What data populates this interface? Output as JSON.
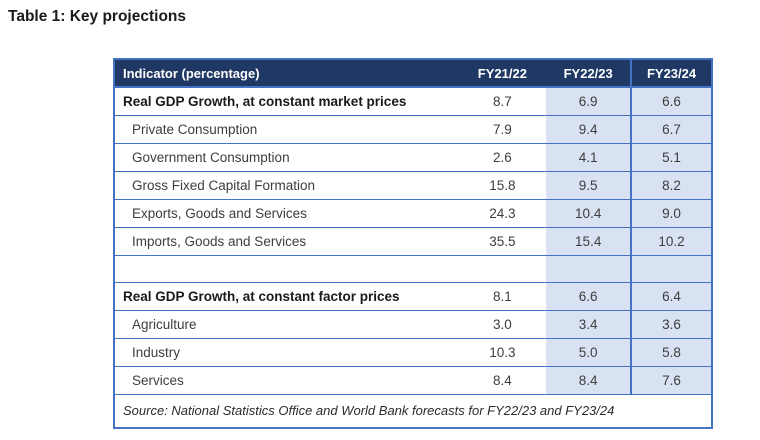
{
  "title": "Table 1: Key projections",
  "table": {
    "columns": [
      "Indicator (percentage)",
      "FY21/22",
      "FY22/23",
      "FY23/24"
    ],
    "rows": [
      {
        "label": "Real GDP Growth, at constant market prices",
        "bold": true,
        "values": [
          "8.7",
          "6.9",
          "6.6"
        ]
      },
      {
        "label": "Private Consumption",
        "bold": false,
        "values": [
          "7.9",
          "9.4",
          "6.7"
        ]
      },
      {
        "label": "Government Consumption",
        "bold": false,
        "values": [
          "2.6",
          "4.1",
          "5.1"
        ]
      },
      {
        "label": "Gross Fixed Capital Formation",
        "bold": false,
        "values": [
          "15.8",
          "9.5",
          "8.2"
        ]
      },
      {
        "label": "Exports, Goods and Services",
        "bold": false,
        "values": [
          "24.3",
          "10.4",
          "9.0"
        ]
      },
      {
        "label": "Imports, Goods and Services",
        "bold": false,
        "values": [
          "35.5",
          "15.4",
          "10.2"
        ]
      },
      {
        "label": "",
        "bold": false,
        "values": [
          "",
          "",
          ""
        ]
      },
      {
        "label": "Real GDP Growth, at constant factor prices",
        "bold": true,
        "values": [
          "8.1",
          "6.6",
          "6.4"
        ]
      },
      {
        "label": "Agriculture",
        "bold": false,
        "values": [
          "3.0",
          "3.4",
          "3.6"
        ]
      },
      {
        "label": "Industry",
        "bold": false,
        "values": [
          "10.3",
          "5.0",
          "5.8"
        ]
      },
      {
        "label": "Services",
        "bold": false,
        "values": [
          "8.4",
          "8.4",
          "7.6"
        ]
      }
    ],
    "source": "Source: National Statistics Office and World Bank forecasts for FY22/23 and FY23/24"
  },
  "colors": {
    "header_bg": "#1f3864",
    "header_text": "#ffffff",
    "shade": "#d9e2f3",
    "border": "#4472c4",
    "body_text": "#3d3d3d",
    "bold_text": "#1a1a1a"
  }
}
